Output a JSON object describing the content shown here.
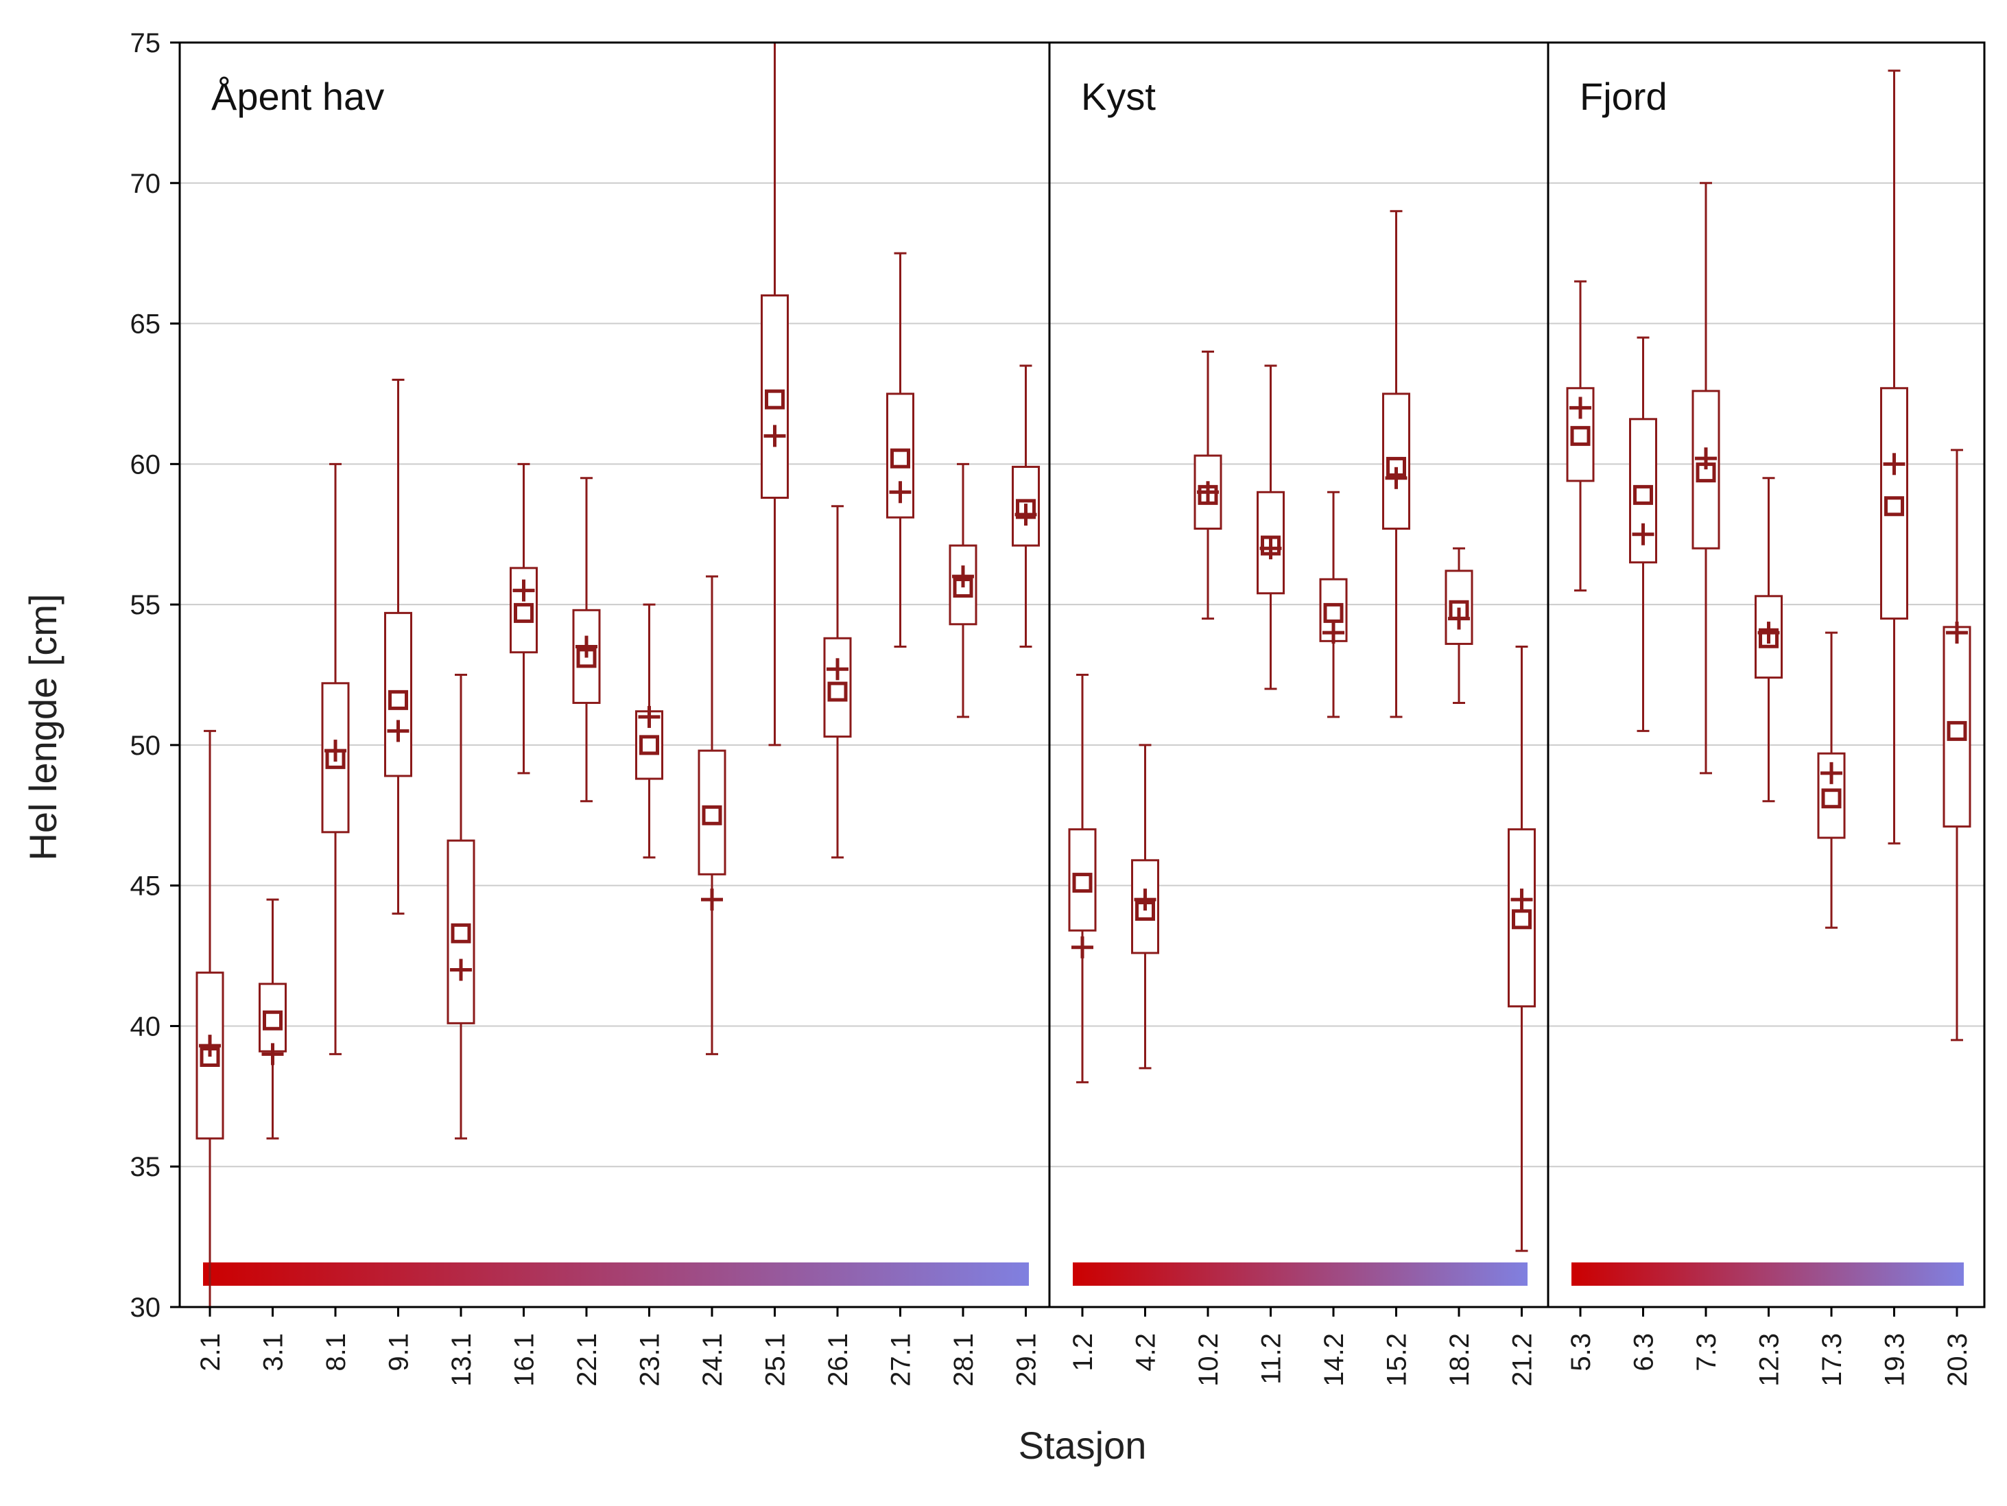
{
  "chart_data": {
    "type": "boxplot",
    "title": "",
    "xlabel": "Stasjon",
    "ylabel": "Hel lengde [cm]",
    "ylim": [
      30,
      75
    ],
    "yticks": [
      30,
      35,
      40,
      45,
      50,
      55,
      60,
      65,
      70,
      75
    ],
    "grid": true,
    "legend": "none",
    "mean_marker": "+",
    "median_marker": "square",
    "colors": {
      "box": "#8b1a1a",
      "gradient_start": "#cc0000",
      "gradient_end": "#8080e0",
      "grid": "#cccccc",
      "frame": "#000000"
    },
    "groups": [
      {
        "name": "Åpent hav",
        "stations": [
          {
            "label": "2.1",
            "min": 30,
            "q1": 36,
            "median": 38.9,
            "q3": 41.9,
            "max": 50.5,
            "mean": 39.3
          },
          {
            "label": "3.1",
            "min": 36,
            "q1": 39.1,
            "median": 40.2,
            "q3": 41.5,
            "max": 44.5,
            "mean": 39
          },
          {
            "label": "8.1",
            "min": 39,
            "q1": 46.9,
            "median": 49.5,
            "q3": 52.2,
            "max": 60,
            "mean": 49.8
          },
          {
            "label": "9.1",
            "min": 44,
            "q1": 48.9,
            "median": 51.6,
            "q3": 54.7,
            "max": 63,
            "mean": 50.5
          },
          {
            "label": "13.1",
            "min": 36,
            "q1": 40.1,
            "median": 43.3,
            "q3": 46.6,
            "max": 52.5,
            "mean": 42
          },
          {
            "label": "16.1",
            "min": 49,
            "q1": 53.3,
            "median": 54.7,
            "q3": 56.3,
            "max": 60,
            "mean": 55.5
          },
          {
            "label": "22.1",
            "min": 48,
            "q1": 51.5,
            "median": 53.1,
            "q3": 54.8,
            "max": 59.5,
            "mean": 53.5
          },
          {
            "label": "23.1",
            "min": 46,
            "q1": 48.8,
            "median": 50,
            "q3": 51.2,
            "max": 55,
            "mean": 51
          },
          {
            "label": "24.1",
            "min": 39,
            "q1": 45.4,
            "median": 47.5,
            "q3": 49.8,
            "max": 56,
            "mean": 44.5
          },
          {
            "label": "25.1",
            "min": 50,
            "q1": 58.8,
            "median": 62.3,
            "q3": 66,
            "max": 75,
            "mean": 61
          },
          {
            "label": "26.1",
            "min": 46,
            "q1": 50.3,
            "median": 51.9,
            "q3": 53.8,
            "max": 58.5,
            "mean": 52.7
          },
          {
            "label": "27.1",
            "min": 53.5,
            "q1": 58.1,
            "median": 60.2,
            "q3": 62.5,
            "max": 67.5,
            "mean": 59
          },
          {
            "label": "28.1",
            "min": 51,
            "q1": 54.3,
            "median": 55.6,
            "q3": 57.1,
            "max": 60,
            "mean": 56
          },
          {
            "label": "29.1",
            "min": 53.5,
            "q1": 57.1,
            "median": 58.4,
            "q3": 59.9,
            "max": 63.5,
            "mean": 58.2
          }
        ]
      },
      {
        "name": "Kyst",
        "stations": [
          {
            "label": "1.2",
            "min": 38,
            "q1": 43.4,
            "median": 45.1,
            "q3": 47,
            "max": 52.5,
            "mean": 42.8
          },
          {
            "label": "4.2",
            "min": 38.5,
            "q1": 42.6,
            "median": 44.1,
            "q3": 45.9,
            "max": 50,
            "mean": 44.5
          },
          {
            "label": "10.2",
            "min": 54.5,
            "q1": 57.7,
            "median": 58.9,
            "q3": 60.3,
            "max": 64,
            "mean": 59
          },
          {
            "label": "11.2",
            "min": 52,
            "q1": 55.4,
            "median": 57.1,
            "q3": 59,
            "max": 63.5,
            "mean": 57
          },
          {
            "label": "14.2",
            "min": 51,
            "q1": 53.7,
            "median": 54.7,
            "q3": 55.9,
            "max": 59,
            "mean": 54
          },
          {
            "label": "15.2",
            "min": 51,
            "q1": 57.7,
            "median": 59.9,
            "q3": 62.5,
            "max": 69,
            "mean": 59.5
          },
          {
            "label": "18.2",
            "min": 51.5,
            "q1": 53.6,
            "median": 54.8,
            "q3": 56.2,
            "max": 57,
            "mean": 54.5
          },
          {
            "label": "21.2",
            "min": 32,
            "q1": 40.7,
            "median": 43.8,
            "q3": 47,
            "max": 53.5,
            "mean": 44.5
          }
        ]
      },
      {
        "name": "Fjord",
        "stations": [
          {
            "label": "5.3",
            "min": 55.5,
            "q1": 59.4,
            "median": 61,
            "q3": 62.7,
            "max": 66.5,
            "mean": 62
          },
          {
            "label": "6.3",
            "min": 50.5,
            "q1": 56.5,
            "median": 58.9,
            "q3": 61.6,
            "max": 64.5,
            "mean": 57.5
          },
          {
            "label": "7.3",
            "min": 49,
            "q1": 57,
            "median": 59.7,
            "q3": 62.6,
            "max": 70,
            "mean": 60.2
          },
          {
            "label": "12.3",
            "min": 48,
            "q1": 52.4,
            "median": 53.8,
            "q3": 55.3,
            "max": 59.5,
            "mean": 54
          },
          {
            "label": "17.3",
            "min": 43.5,
            "q1": 46.7,
            "median": 48.1,
            "q3": 49.7,
            "max": 54,
            "mean": 49
          },
          {
            "label": "19.3",
            "min": 46.5,
            "q1": 54.5,
            "median": 58.5,
            "q3": 62.7,
            "max": 74,
            "mean": 60
          },
          {
            "label": "20.3",
            "min": 39.5,
            "q1": 47.1,
            "median": 50.5,
            "q3": 54.2,
            "max": 60.5,
            "mean": 54
          }
        ]
      }
    ]
  }
}
